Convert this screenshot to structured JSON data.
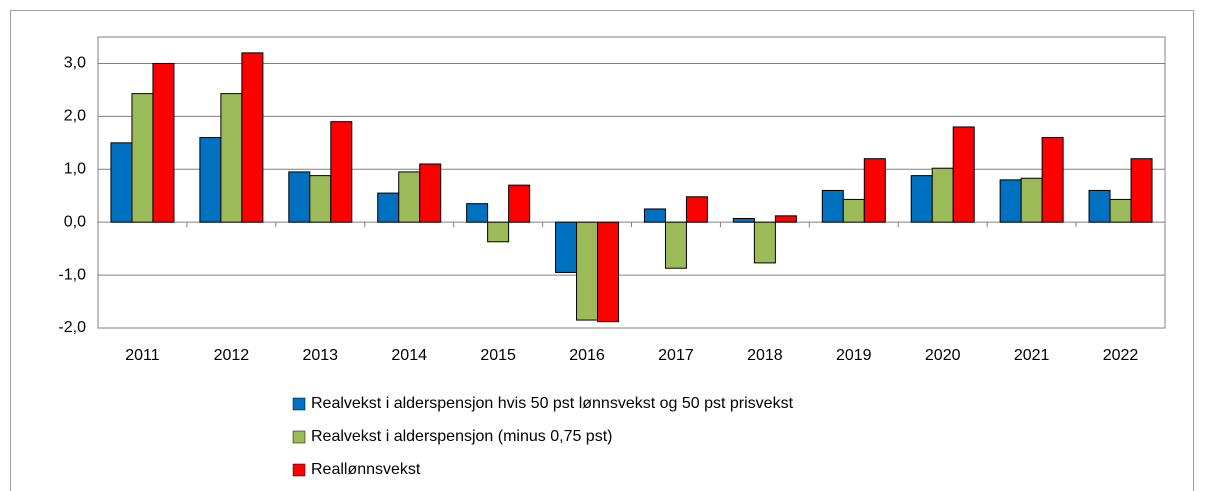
{
  "chart_data": {
    "type": "bar",
    "categories": [
      "2011",
      "2012",
      "2013",
      "2014",
      "2015",
      "2016",
      "2017",
      "2018",
      "2019",
      "2020",
      "2021",
      "2022"
    ],
    "series": [
      {
        "name": "Realvekst i alderspensjon hvis 50 pst lønnsvekst og 50 pst prisvekst",
        "color": "#0070c0",
        "values": [
          1.5,
          1.6,
          0.95,
          0.55,
          0.35,
          -0.95,
          0.25,
          0.07,
          0.6,
          0.88,
          0.8,
          0.6
        ]
      },
      {
        "name": "Realvekst i alderspensjon (minus 0,75 pst)",
        "color": "#9bbb59",
        "values": [
          2.43,
          2.43,
          0.88,
          0.95,
          -0.37,
          -1.85,
          -0.87,
          -0.77,
          0.43,
          1.02,
          0.83,
          0.43
        ]
      },
      {
        "name": "Reallønnsvekst",
        "color": "#ff0000",
        "values": [
          3.0,
          3.2,
          1.9,
          1.1,
          0.7,
          -1.88,
          0.48,
          0.12,
          1.2,
          1.8,
          1.6,
          1.2
        ]
      }
    ],
    "ylim": [
      -2,
      3.5
    ],
    "yticks": [
      {
        "value": -2,
        "label": "-2,0"
      },
      {
        "value": -1,
        "label": "-1,0"
      },
      {
        "value": 0,
        "label": "0,0"
      },
      {
        "value": 1,
        "label": "1,0"
      },
      {
        "value": 2,
        "label": "2,0"
      },
      {
        "value": 3,
        "label": "3,0"
      }
    ],
    "grid": true,
    "legend": "bottom"
  }
}
